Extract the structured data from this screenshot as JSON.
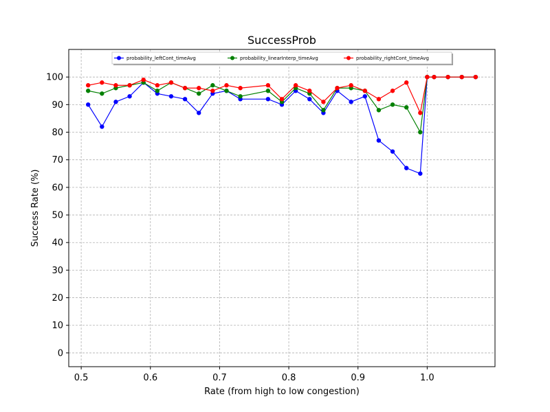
{
  "chart_data": {
    "type": "line",
    "title": "SuccessProb",
    "xlabel": "Rate (from high to low congestion)",
    "ylabel": "Success Rate (%)",
    "xlim": [
      0.482,
      1.098
    ],
    "ylim": [
      -5,
      110
    ],
    "xticks": [
      0.5,
      0.6,
      0.7,
      0.8,
      0.9,
      1.0
    ],
    "xtick_labels": [
      "0.5",
      "0.6",
      "0.7",
      "0.8",
      "0.9",
      "1.0"
    ],
    "yticks": [
      0,
      10,
      20,
      30,
      40,
      50,
      60,
      70,
      80,
      90,
      100
    ],
    "ytick_labels": [
      "0",
      "10",
      "20",
      "30",
      "40",
      "50",
      "60",
      "70",
      "80",
      "90",
      "100"
    ],
    "grid": true,
    "legend_position": "top-center",
    "x": [
      0.51,
      0.53,
      0.55,
      0.57,
      0.59,
      0.61,
      0.63,
      0.65,
      0.67,
      0.69,
      0.71,
      0.73,
      0.77,
      0.79,
      0.81,
      0.83,
      0.85,
      0.87,
      0.89,
      0.91,
      0.93,
      0.95,
      0.97,
      0.99,
      1.0,
      1.01,
      1.03,
      1.05,
      1.07
    ],
    "series": [
      {
        "name": "probability_leftCont_timeAvg",
        "color": "#0000ff",
        "values": [
          90,
          82,
          91,
          93,
          98,
          94,
          93,
          92,
          87,
          94,
          95,
          92,
          92,
          90,
          95,
          92,
          87,
          95,
          91,
          93,
          77,
          73,
          67,
          65,
          100,
          100,
          100,
          100,
          100
        ]
      },
      {
        "name": "probability_linearInterp_timeAvg",
        "color": "#008000",
        "values": [
          95,
          94,
          96,
          97,
          98,
          95,
          98,
          96,
          94,
          97,
          95,
          93,
          95,
          91,
          96,
          94,
          88,
          96,
          96,
          95,
          88,
          90,
          89,
          80,
          100,
          100,
          100,
          100,
          100
        ]
      },
      {
        "name": "probability_rightCont_timeAvg",
        "color": "#ff0000",
        "values": [
          97,
          98,
          97,
          97,
          99,
          97,
          98,
          96,
          96,
          95,
          97,
          96,
          97,
          92,
          97,
          95,
          91,
          96,
          97,
          95,
          92,
          95,
          98,
          87,
          100,
          100,
          100,
          100,
          100
        ]
      }
    ]
  }
}
